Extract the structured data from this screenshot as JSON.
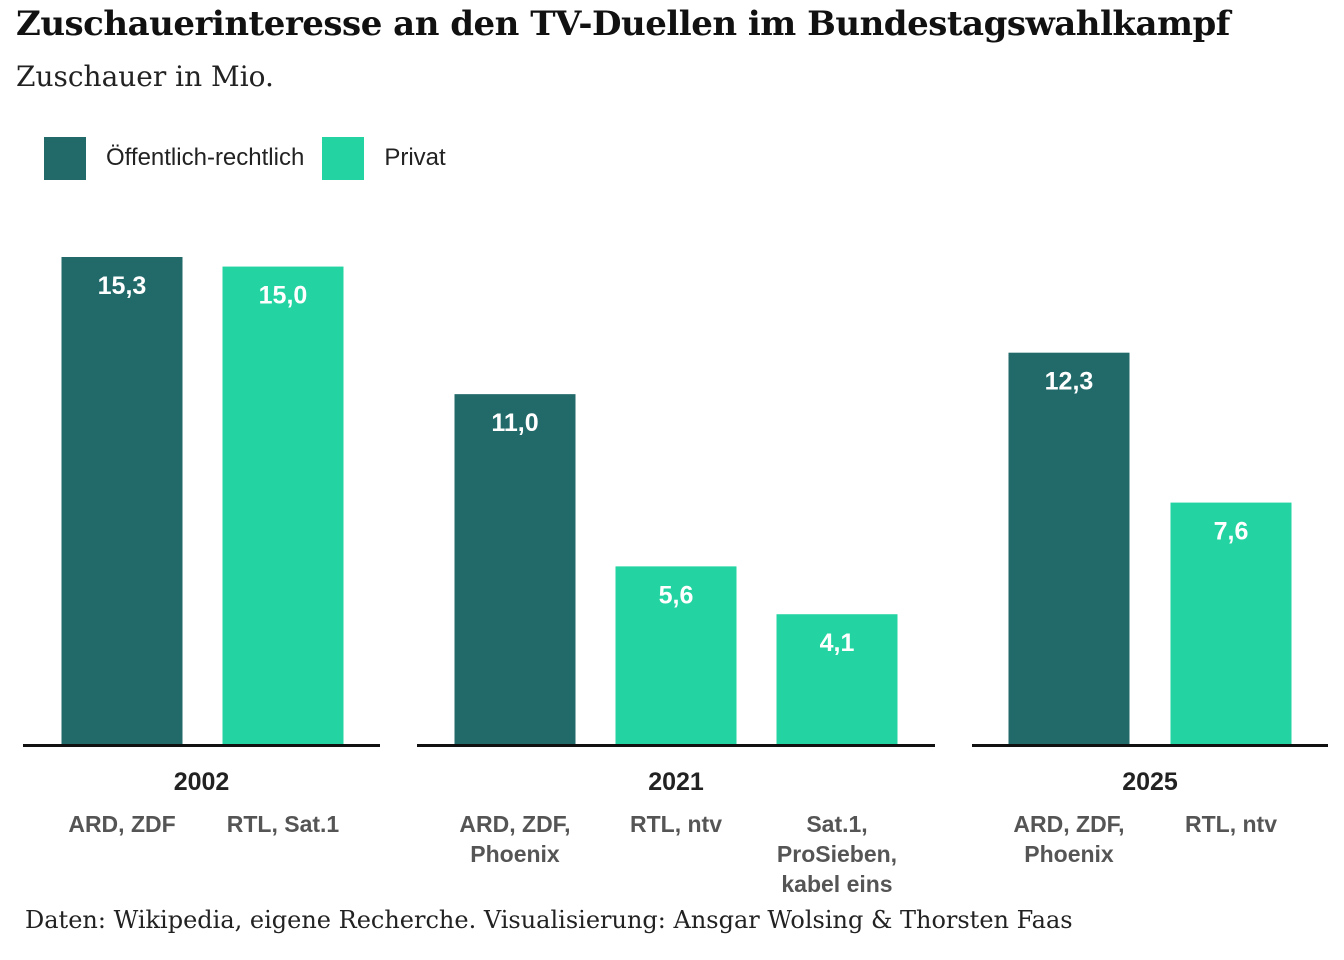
{
  "title": "Zuschauerinteresse an den TV-Duellen im Bundestagswahlkampf",
  "subtitle": "Zuschauer in Mio.",
  "legend": [
    {
      "label": "Öffentlich-rechtlich",
      "color": "#22696a"
    },
    {
      "label": "Privat",
      "color": "#23d3a2"
    }
  ],
  "footer": "Daten: Wikipedia, eigene Recherche. Visualisierung: Ansgar Wolsing & Thorsten Faas",
  "chart_data": {
    "type": "bar",
    "ylim": [
      0,
      15.3
    ],
    "grid": false,
    "groups": [
      {
        "year": "2002",
        "bars": [
          {
            "broadcaster": [
              "ARD, ZDF"
            ],
            "value": 15.3,
            "label": "15,3",
            "type": "Öffentlich-rechtlich"
          },
          {
            "broadcaster": [
              "RTL, Sat.1"
            ],
            "value": 15.0,
            "label": "15,0",
            "type": "Privat"
          }
        ]
      },
      {
        "year": "2021",
        "bars": [
          {
            "broadcaster": [
              "ARD, ZDF,",
              "Phoenix"
            ],
            "value": 11.0,
            "label": "11,0",
            "type": "Öffentlich-rechtlich"
          },
          {
            "broadcaster": [
              "RTL, ntv"
            ],
            "value": 5.6,
            "label": "5,6",
            "type": "Privat"
          },
          {
            "broadcaster": [
              "Sat.1,",
              "ProSieben,",
              "kabel eins"
            ],
            "value": 4.1,
            "label": "4,1",
            "type": "Privat"
          }
        ]
      },
      {
        "year": "2025",
        "bars": [
          {
            "broadcaster": [
              "ARD, ZDF,",
              "Phoenix"
            ],
            "value": 12.3,
            "label": "12,3",
            "type": "Öffentlich-rechtlich"
          },
          {
            "broadcaster": [
              "RTL, ntv"
            ],
            "value": 7.6,
            "label": "7,6",
            "type": "Privat"
          }
        ]
      }
    ]
  }
}
